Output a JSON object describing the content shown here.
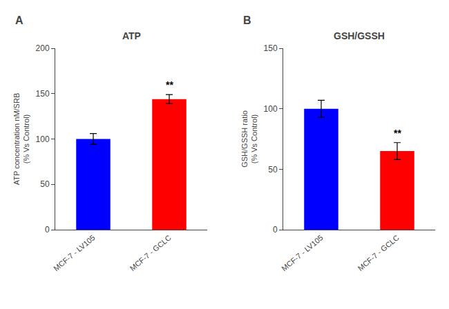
{
  "chart_data": [
    {
      "type": "bar",
      "panel_label": "A",
      "title": "ATP",
      "ylabel": "ATP concentration nM/SRB\n(% Vs Control)",
      "categories": [
        "MCF-7 - LV105",
        "MCF-7 - GCLC"
      ],
      "values": [
        100,
        144
      ],
      "errors": [
        6,
        5
      ],
      "colors": [
        "#0000ff",
        "#ff0000"
      ],
      "ylim": [
        0,
        200
      ],
      "yticks": [
        0,
        50,
        100,
        150,
        200
      ],
      "grid": false,
      "annotations": [
        {
          "text": "**",
          "category": "MCF-7 - GCLC"
        }
      ]
    },
    {
      "type": "bar",
      "panel_label": "B",
      "title": "GSH/GSSH",
      "ylabel": "GSH/GSSH ratio\n(% Vs Control)",
      "categories": [
        "MCF-7 - LV105",
        "MCF-7 - GCLC"
      ],
      "values": [
        100,
        65
      ],
      "errors": [
        7,
        7
      ],
      "colors": [
        "#0000ff",
        "#ff0000"
      ],
      "ylim": [
        0,
        150
      ],
      "yticks": [
        0,
        50,
        100,
        150
      ],
      "grid": false,
      "annotations": [
        {
          "text": "**",
          "category": "MCF-7 - GCLC"
        }
      ]
    }
  ]
}
